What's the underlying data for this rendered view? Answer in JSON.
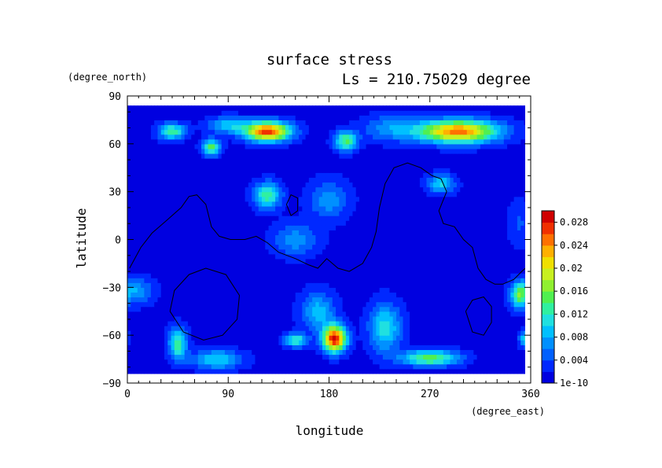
{
  "chart_data": {
    "type": "heatmap",
    "title": "surface stress",
    "subtitle": "Ls = 210.75029 degree",
    "xlabel": "longitude",
    "ylabel": "latitude",
    "x_units": "(degree_east)",
    "y_units": "(degree_north)",
    "xlim": [
      0,
      360
    ],
    "ylim": [
      -90,
      90
    ],
    "x_ticks": [
      "0",
      "90",
      "180",
      "270",
      "360"
    ],
    "y_ticks": [
      "90",
      "60",
      "30",
      "0",
      "−30",
      "−60",
      "−90"
    ],
    "colorbar": {
      "min": 0,
      "max": 0.03,
      "tick_labels": [
        "1e-10",
        "0.004",
        "0.008",
        "0.012",
        "0.016",
        "0.02",
        "0.024",
        "0.028"
      ],
      "tick_values": [
        0,
        0.004,
        0.008,
        0.012,
        0.016,
        0.02,
        0.024,
        0.028
      ],
      "colors": [
        "#0000e0",
        "#0028ff",
        "#0060ff",
        "#0090ff",
        "#00c0ff",
        "#20e0e0",
        "#30f0a0",
        "#50f050",
        "#90f030",
        "#c8f020",
        "#f0e000",
        "#ffb000",
        "#ff7000",
        "#f03000",
        "#d00000"
      ]
    },
    "grid": false,
    "background_level": 0.0012,
    "blobs": [
      {
        "lon": 40,
        "lat": 68,
        "rx": 12,
        "ry": 5,
        "v": 0.012
      },
      {
        "lon": 75,
        "lat": 58,
        "rx": 8,
        "ry": 5,
        "v": 0.014
      },
      {
        "lon": 125,
        "lat": 68,
        "rx": 20,
        "ry": 6,
        "v": 0.026
      },
      {
        "lon": 90,
        "lat": 72,
        "rx": 18,
        "ry": 5,
        "v": 0.008
      },
      {
        "lon": 195,
        "lat": 62,
        "rx": 10,
        "ry": 6,
        "v": 0.013
      },
      {
        "lon": 295,
        "lat": 68,
        "rx": 35,
        "ry": 7,
        "v": 0.024
      },
      {
        "lon": 235,
        "lat": 70,
        "rx": 25,
        "ry": 8,
        "v": 0.006
      },
      {
        "lon": 125,
        "lat": 28,
        "rx": 12,
        "ry": 8,
        "v": 0.012
      },
      {
        "lon": 180,
        "lat": 25,
        "rx": 18,
        "ry": 12,
        "v": 0.006
      },
      {
        "lon": 280,
        "lat": 35,
        "rx": 12,
        "ry": 6,
        "v": 0.009
      },
      {
        "lon": 150,
        "lat": 0,
        "rx": 20,
        "ry": 10,
        "v": 0.006
      },
      {
        "lon": 5,
        "lat": -32,
        "rx": 18,
        "ry": 8,
        "v": 0.007
      },
      {
        "lon": 45,
        "lat": -65,
        "rx": 8,
        "ry": 10,
        "v": 0.012
      },
      {
        "lon": 80,
        "lat": -75,
        "rx": 22,
        "ry": 6,
        "v": 0.009
      },
      {
        "lon": 150,
        "lat": -63,
        "rx": 10,
        "ry": 4,
        "v": 0.012
      },
      {
        "lon": 185,
        "lat": -62,
        "rx": 10,
        "ry": 8,
        "v": 0.028
      },
      {
        "lon": 170,
        "lat": -45,
        "rx": 15,
        "ry": 12,
        "v": 0.008
      },
      {
        "lon": 230,
        "lat": -55,
        "rx": 14,
        "ry": 15,
        "v": 0.01
      },
      {
        "lon": 270,
        "lat": -74,
        "rx": 25,
        "ry": 5,
        "v": 0.014
      },
      {
        "lon": 350,
        "lat": -35,
        "rx": 8,
        "ry": 8,
        "v": 0.012
      },
      {
        "lon": 355,
        "lat": -62,
        "rx": 5,
        "ry": 5,
        "v": 0.01
      },
      {
        "lon": 350,
        "lat": 10,
        "rx": 10,
        "ry": 15,
        "v": 0.003
      }
    ],
    "contours": [
      [
        [
          2,
          -18
        ],
        [
          12,
          -5
        ],
        [
          22,
          4
        ],
        [
          35,
          12
        ],
        [
          48,
          20
        ],
        [
          55,
          27
        ],
        [
          62,
          28
        ],
        [
          70,
          22
        ],
        [
          75,
          8
        ],
        [
          82,
          2
        ],
        [
          92,
          0
        ],
        [
          105,
          0
        ],
        [
          115,
          2
        ],
        [
          125,
          -2
        ],
        [
          135,
          -8
        ],
        [
          150,
          -12
        ],
        [
          162,
          -16
        ],
        [
          170,
          -18
        ],
        [
          178,
          -12
        ],
        [
          188,
          -18
        ],
        [
          198,
          -20
        ],
        [
          210,
          -15
        ],
        [
          218,
          -5
        ],
        [
          222,
          5
        ],
        [
          225,
          20
        ],
        [
          230,
          35
        ],
        [
          238,
          45
        ],
        [
          250,
          48
        ],
        [
          262,
          45
        ],
        [
          272,
          40
        ],
        [
          280,
          38
        ],
        [
          285,
          30
        ],
        [
          278,
          18
        ],
        [
          282,
          10
        ],
        [
          292,
          8
        ],
        [
          300,
          0
        ],
        [
          308,
          -5
        ],
        [
          313,
          -18
        ],
        [
          320,
          -25
        ],
        [
          328,
          -28
        ],
        [
          335,
          -28
        ],
        [
          345,
          -25
        ],
        [
          352,
          -20
        ],
        [
          360,
          -15
        ]
      ],
      [
        [
          38,
          -45
        ],
        [
          42,
          -32
        ],
        [
          55,
          -22
        ],
        [
          70,
          -18
        ],
        [
          88,
          -22
        ],
        [
          100,
          -35
        ],
        [
          98,
          -50
        ],
        [
          85,
          -60
        ],
        [
          68,
          -63
        ],
        [
          50,
          -58
        ],
        [
          38,
          -45
        ]
      ],
      [
        [
          302,
          -45
        ],
        [
          308,
          -38
        ],
        [
          318,
          -36
        ],
        [
          325,
          -42
        ],
        [
          325,
          -52
        ],
        [
          318,
          -60
        ],
        [
          308,
          -58
        ],
        [
          302,
          -45
        ]
      ],
      [
        [
          142,
          22
        ],
        [
          146,
          28
        ],
        [
          152,
          26
        ],
        [
          152,
          18
        ],
        [
          146,
          15
        ],
        [
          142,
          22
        ]
      ]
    ]
  }
}
